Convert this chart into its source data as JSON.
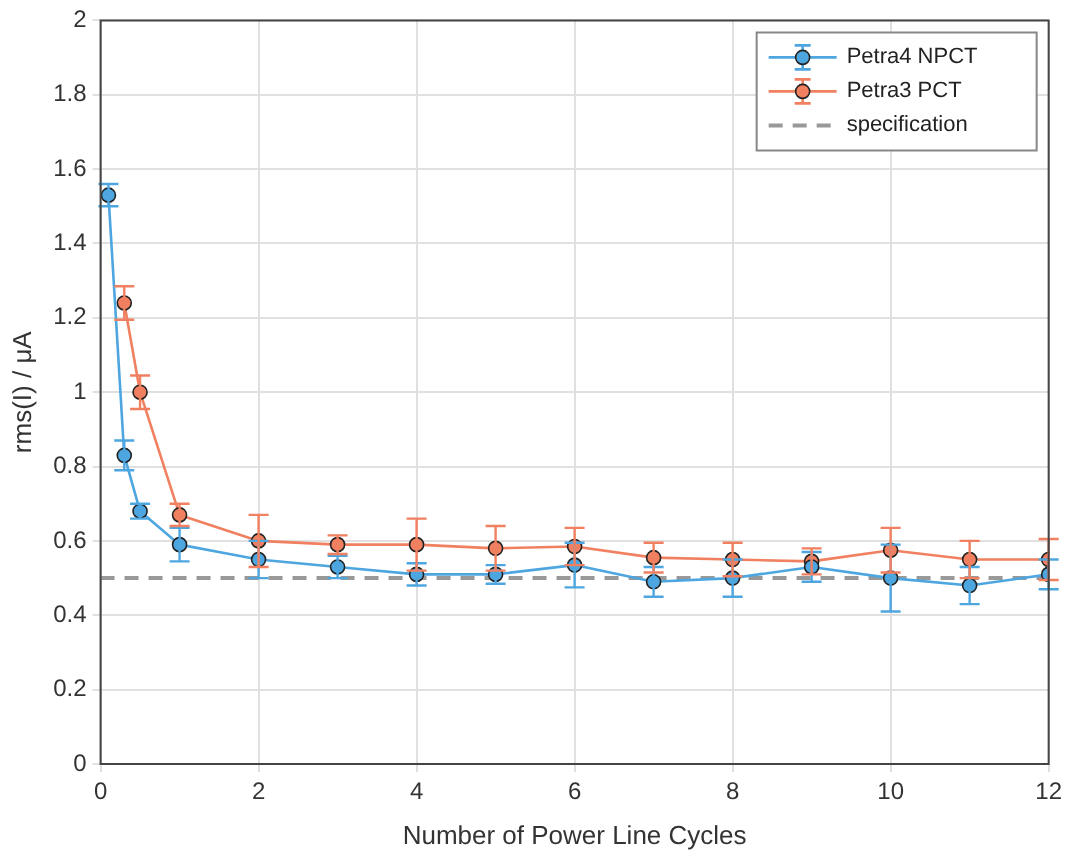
{
  "chart_data": {
    "type": "line",
    "xlabel": "Number of Power Line Cycles",
    "ylabel": "rms(I) / μA",
    "xlim": [
      0,
      12
    ],
    "xticks": [
      0,
      2,
      4,
      6,
      8,
      10,
      12
    ],
    "ylim": [
      0,
      2
    ],
    "yticks": [
      0,
      0.2,
      0.4,
      0.6,
      0.8,
      1,
      1.2,
      1.4,
      1.6,
      1.8,
      2
    ],
    "grid": true,
    "legend": "top right",
    "marker": "circle",
    "line_style": "solid",
    "series": [
      {
        "name": "Petra4 NPCT",
        "color": "#4da6e0",
        "x": [
          0.1,
          0.3,
          0.5,
          1,
          2,
          3,
          4,
          5,
          6,
          7,
          8,
          9,
          10,
          11,
          12
        ],
        "values": [
          1.53,
          0.83,
          0.68,
          0.59,
          0.55,
          0.53,
          0.51,
          0.51,
          0.535,
          0.49,
          0.5,
          0.53,
          0.5,
          0.48,
          0.51
        ],
        "errors": [
          0.03,
          0.04,
          0.02,
          0.045,
          0.05,
          0.03,
          0.03,
          0.025,
          0.06,
          0.04,
          0.05,
          0.04,
          0.09,
          0.05,
          0.04
        ]
      },
      {
        "name": "Petra3 PCT",
        "color": "#f08060",
        "x": [
          0.3,
          0.5,
          1,
          2,
          3,
          4,
          5,
          6,
          7,
          8,
          9,
          10,
          11,
          12
        ],
        "values": [
          1.24,
          1.0,
          0.67,
          0.6,
          0.59,
          0.59,
          0.58,
          0.585,
          0.555,
          0.55,
          0.545,
          0.575,
          0.55,
          0.55
        ],
        "errors": [
          0.045,
          0.045,
          0.03,
          0.07,
          0.025,
          0.07,
          0.06,
          0.05,
          0.04,
          0.045,
          0.035,
          0.06,
          0.05,
          0.055
        ]
      }
    ],
    "ref_lines": [
      {
        "axis": "y",
        "value": 0.5,
        "label": "specification",
        "color": "#999999",
        "line_style": "dashed"
      }
    ]
  }
}
